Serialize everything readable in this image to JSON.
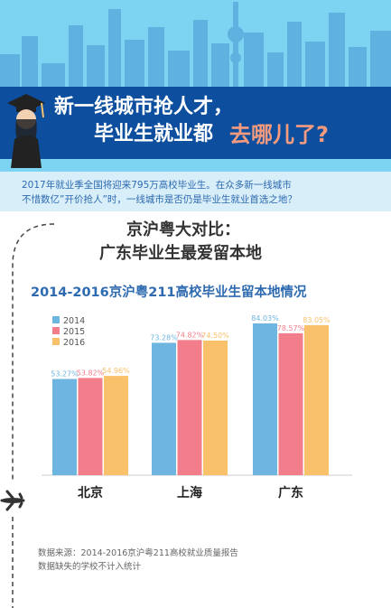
{
  "header": {
    "title_line1": "新一线城市抢人才，",
    "title_line2": "毕业生就业都",
    "title_highlight": "去哪儿了?"
  },
  "intro": {
    "line1": "2017年就业季全国将迎来795万高校毕业生。在众多新一线城市",
    "line2": "不惜数亿”开价抢人”时，一线城市是否仍是毕业生就业首选之地？"
  },
  "section": {
    "title_line1": "京沪粤大对比：",
    "title_line2": "广东毕业生最爱留本地"
  },
  "chart_data": {
    "type": "bar",
    "title": "2014-2016京沪粤211高校毕业生留本地情况",
    "categories": [
      "北京",
      "上海",
      "广东"
    ],
    "series": [
      {
        "name": "2014",
        "color": "#6fb5e1",
        "values": [
          53.27,
          73.28,
          84.03
        ],
        "labels": [
          "53.27%",
          "73.28%",
          "84.03%"
        ]
      },
      {
        "name": "2015",
        "color": "#f27e8b",
        "values": [
          53.82,
          74.82,
          78.57
        ],
        "labels": [
          "53.82%",
          "74.82%",
          "78.57%"
        ]
      },
      {
        "name": "2016",
        "color": "#f9c16a",
        "values": [
          54.96,
          74.5,
          83.05
        ],
        "labels": [
          "54.96%",
          "74.50%",
          "83.05%"
        ]
      }
    ],
    "ylim": [
      0,
      100
    ],
    "legend": "top-left",
    "grid": false
  },
  "source": {
    "line1": "数据来源：2014-2016京沪粤211高校就业质量报告",
    "line2": "数据缺失的学校不计入统计"
  },
  "colors": {
    "sky": "#7cd3f2",
    "band": "#0d4f9e",
    "highlight": "#f49b7f",
    "accent_text": "#2e6ab0"
  }
}
